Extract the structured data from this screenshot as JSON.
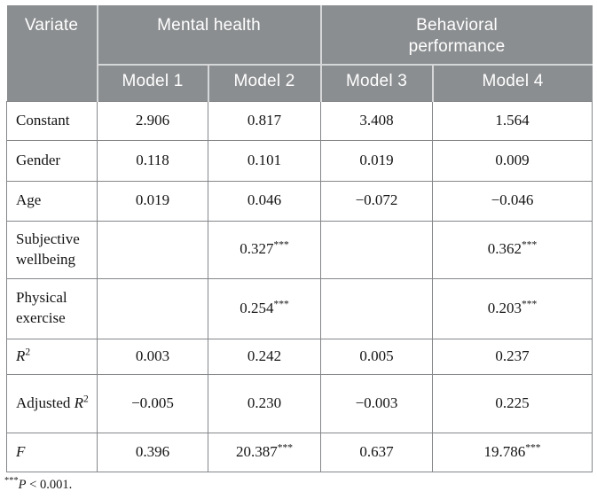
{
  "colors": {
    "header_bg": "#8b8e90",
    "header_text": "#ffffff",
    "header_divider": "#d5d7d8",
    "body_border": "#848688",
    "body_text": "#141414"
  },
  "table": {
    "variate_header": "Variate",
    "group_headers": [
      "Mental health",
      "Behavioral performance"
    ],
    "model_headers": [
      "Model 1",
      "Model 2",
      "Model 3",
      "Model 4"
    ],
    "rows": [
      {
        "variate": "Constant",
        "values": [
          "2.906",
          "0.817",
          "3.408",
          "1.564"
        ]
      },
      {
        "variate": "Gender",
        "values": [
          "0.118",
          "0.101",
          "0.019",
          "0.009"
        ]
      },
      {
        "variate": "Age",
        "values": [
          "0.019",
          "0.046",
          "−0.072",
          "−0.046"
        ]
      },
      {
        "variate": "Subjective wellbeing",
        "values": [
          "",
          "0.327***",
          "",
          "0.362***"
        ]
      },
      {
        "variate": "Physical exercise",
        "values": [
          "",
          "0.254***",
          "",
          "0.203***"
        ]
      },
      {
        "variate": "R^2",
        "values": [
          "0.003",
          "0.242",
          "0.005",
          "0.237"
        ]
      },
      {
        "variate": "Adjusted R^2",
        "values": [
          "−0.005",
          "0.230",
          "−0.003",
          "0.225"
        ]
      },
      {
        "variate": "F",
        "values": [
          "0.396",
          "20.387***",
          "0.637",
          "19.786***"
        ]
      }
    ]
  },
  "footnote": {
    "stars": "***",
    "p_symbol": "P",
    "rest": " < 0.001."
  }
}
